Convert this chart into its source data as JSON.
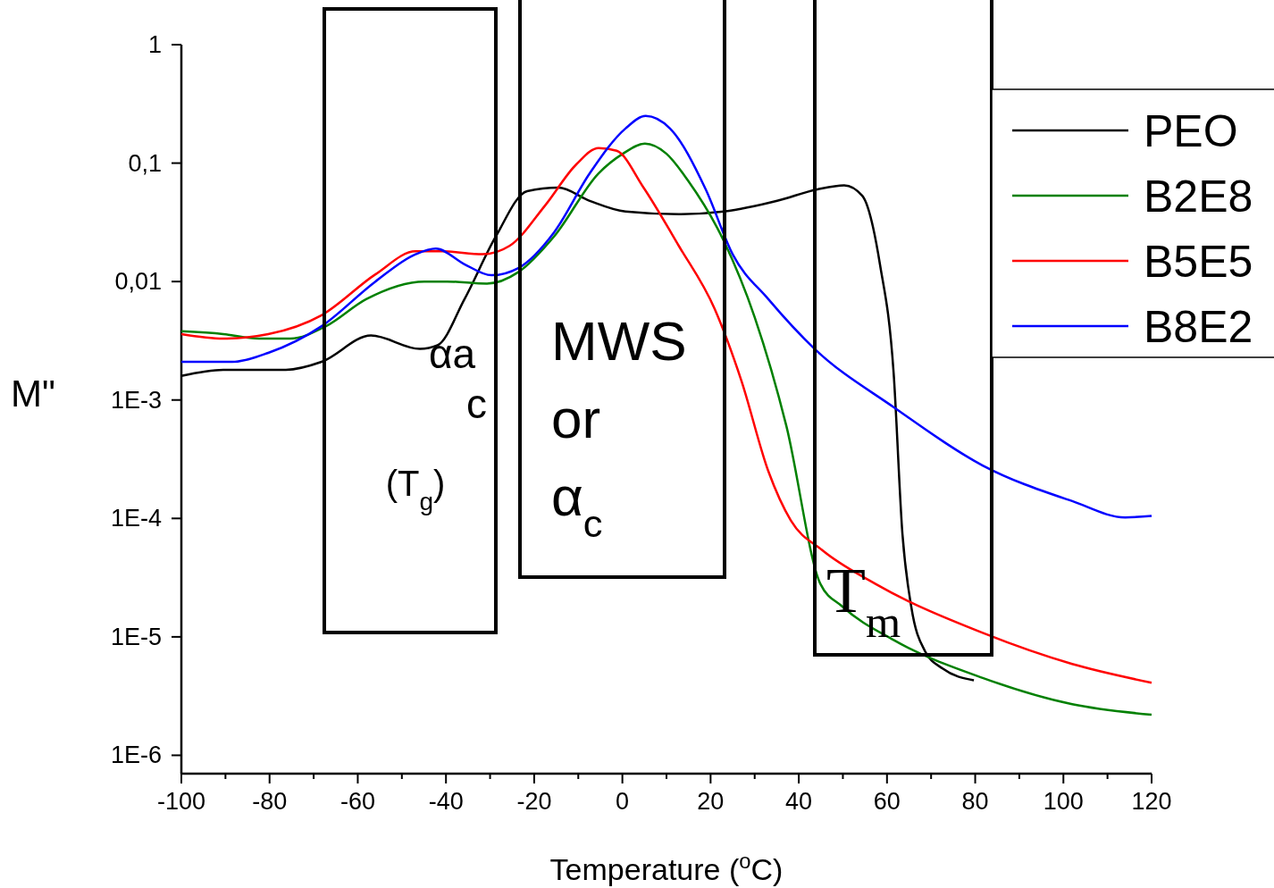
{
  "chart_data": {
    "type": "line",
    "xlabel": "Temperature ($^{o}$C)",
    "ylabel": "M\"",
    "log": "y",
    "xlim": [
      -100,
      120
    ],
    "ylim": [
      7e-07,
      1
    ],
    "xticks": [
      -100,
      {
        "value": -90,
        "label": null
      },
      -80,
      {
        "value": -70,
        "label": null
      },
      -60,
      {
        "value": -50,
        "label": null
      },
      -40,
      {
        "value": -30,
        "label": null
      },
      -20,
      {
        "value": -10,
        "label": null
      },
      0,
      {
        "value": 10,
        "label": null
      },
      20,
      {
        "value": 30,
        "label": null
      },
      40,
      {
        "value": 50,
        "label": null
      },
      60,
      {
        "value": 70,
        "label": null
      },
      80,
      {
        "value": 90,
        "label": null
      },
      100,
      {
        "value": 110,
        "label": null
      },
      120
    ],
    "yticks": [
      {
        "value": 1e-06,
        "label": "1E-6"
      },
      {
        "value": 1e-05,
        "label": "1E-5"
      },
      {
        "value": 0.0001,
        "label": "1E-4"
      },
      {
        "value": 0.001,
        "label": "1E-3"
      },
      {
        "value": 0.01,
        "label": "0,01"
      },
      {
        "value": 0.1,
        "label": "0,1"
      },
      1
    ],
    "grid": false,
    "legend": "right",
    "line_style": "solid",
    "series": [
      {
        "name": "PEO",
        "color": "#000000",
        "x": [
          -100,
          -90.5,
          -76.3,
          -68.2,
          -57,
          -45.9,
          -41.9,
          -35.8,
          -28.7,
          -21.6,
          -14.5,
          -7.4,
          0.7,
          12.8,
          23,
          35.1,
          44.2,
          50.3,
          54.4,
          58.4,
          61.5,
          63.5,
          65.5,
          68.6,
          72.6,
          79.7
        ],
        "values": [
          0.0016,
          0.0018,
          0.0018,
          0.0021,
          0.0035,
          0.0027,
          0.0029,
          0.0071,
          0.024,
          0.058,
          0.062,
          0.048,
          0.039,
          0.037,
          0.039,
          0.048,
          0.06,
          0.065,
          0.053,
          0.014,
          0.0017,
          7.4e-05,
          1.8e-05,
          7.6e-06,
          5.4e-06,
          4.3e-06
        ]
      },
      {
        "name": "B2E8",
        "color": "#008000",
        "x": [
          -100,
          -90.5,
          -82.4,
          -75.3,
          -67.2,
          -58.1,
          -44.9,
          -39.8,
          -30.7,
          -23.6,
          -15.5,
          -5.4,
          0.1,
          5.1,
          10,
          14.9,
          23,
          30,
          37.2,
          44.9,
          49.9,
          61.5,
          81.7,
          102,
          120
        ],
        "values": [
          0.0038,
          0.0036,
          0.0033,
          0.0033,
          0.0042,
          0.0071,
          0.01,
          0.01,
          0.0096,
          0.012,
          0.024,
          0.082,
          0.12,
          0.146,
          0.12,
          0.071,
          0.022,
          0.005,
          0.0006,
          2.8e-05,
          1.8e-05,
          9.4e-06,
          4.5e-06,
          2.7e-06,
          2.2e-06
        ]
      },
      {
        "name": "B5E5",
        "color": "#ff0000",
        "x": [
          -100,
          -90.5,
          -80.3,
          -68.2,
          -56,
          -46.9,
          -40.8,
          -31.7,
          -25.6,
          -17.5,
          -10.4,
          -5.4,
          -1.3,
          4.7,
          12.8,
          20.9,
          27,
          33.1,
          38.2,
          45.3,
          57.4,
          81.7,
          102,
          120
        ],
        "values": [
          0.0036,
          0.0033,
          0.0036,
          0.0052,
          0.0115,
          0.018,
          0.018,
          0.017,
          0.02,
          0.044,
          0.098,
          0.134,
          0.127,
          0.063,
          0.02,
          0.0059,
          0.00145,
          0.00025,
          9.6e-05,
          5.4e-05,
          2.8e-05,
          1.08e-05,
          5.9e-06,
          4.1e-06
        ]
      },
      {
        "name": "B8E2",
        "color": "#0000ff",
        "x": [
          -100,
          -88.5,
          -80.3,
          -68.2,
          -56,
          -46.9,
          -42.3,
          -35.8,
          -29.7,
          -23.6,
          -15.5,
          -7.4,
          0.7,
          5.3,
          10.8,
          18.9,
          25,
          33.1,
          43.6,
          61.5,
          81.7,
          102,
          114,
          120
        ],
        "values": [
          0.0021,
          0.0021,
          0.0025,
          0.0042,
          0.01,
          0.017,
          0.019,
          0.014,
          0.0113,
          0.013,
          0.026,
          0.082,
          0.196,
          0.25,
          0.196,
          0.06,
          0.017,
          0.0071,
          0.0027,
          0.00087,
          0.00028,
          0.00014,
          0.000102,
          0.000105
        ]
      }
    ],
    "annotations": [
      "(T$_{g}$)",
      "MWS\nor\nα$_{c}$",
      "T$_{m}$",
      "αa",
      "c"
    ]
  }
}
